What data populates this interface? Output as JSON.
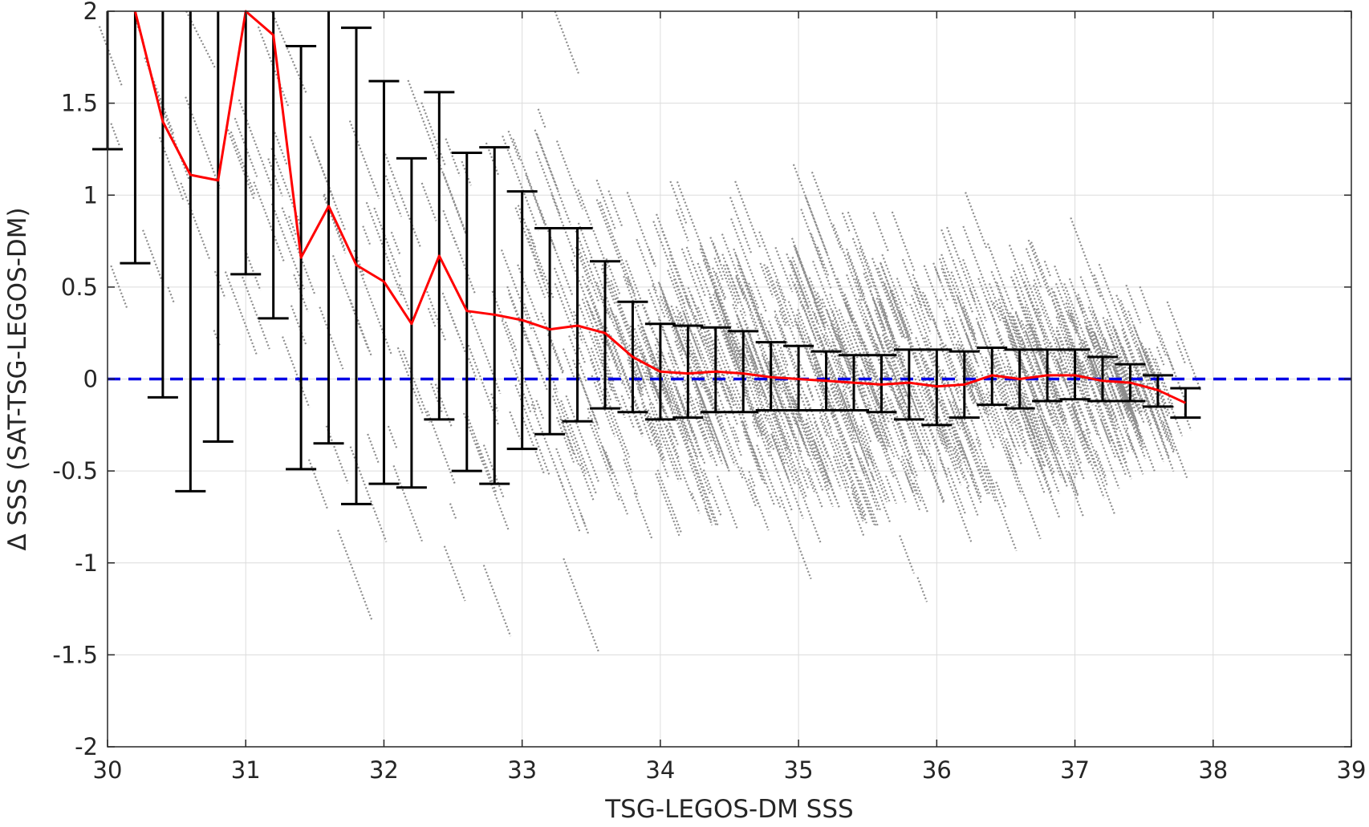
{
  "chart_data": {
    "type": "scatter",
    "title": "",
    "xlabel": "TSG-LEGOS-DM SSS",
    "ylabel": "Δ SSS (SAT-TSG-LEGOS-DM)",
    "xlim": [
      30,
      39
    ],
    "ylim": [
      -2,
      2
    ],
    "x_ticks": [
      30,
      31,
      32,
      33,
      34,
      35,
      36,
      37,
      38,
      39
    ],
    "y_ticks": [
      -2,
      -1.5,
      -1,
      -0.5,
      0,
      0.5,
      1,
      1.5,
      2
    ],
    "x_tick_labels": [
      "30",
      "31",
      "32",
      "33",
      "34",
      "35",
      "36",
      "37",
      "38",
      "39"
    ],
    "y_tick_labels": [
      "-2",
      "-1.5",
      "-1",
      "-0.5",
      "0",
      "0.5",
      "1",
      "1.5",
      "2"
    ],
    "grid": true,
    "colors": {
      "scatter": "#8c8c8c",
      "mean_line": "#ff0000",
      "error_bars": "#000000",
      "zero_line": "#0000e6",
      "grid": "#dcdcdc",
      "axes": "#262626"
    },
    "series": [
      {
        "type": "line",
        "role": "binned-mean",
        "x": [
          30.2,
          30.4,
          30.6,
          30.8,
          31.0,
          31.2,
          31.4,
          31.6,
          31.8,
          32.0,
          32.2,
          32.4,
          32.6,
          32.8,
          33.0,
          33.2,
          33.4,
          33.6,
          33.8,
          34.0,
          34.2,
          34.4,
          34.6,
          34.8,
          35.0,
          35.2,
          35.4,
          35.6,
          35.8,
          36.0,
          36.2,
          36.4,
          36.6,
          36.8,
          37.0,
          37.2,
          37.4,
          37.6,
          37.8
        ],
        "y": [
          2.05,
          1.4,
          1.11,
          1.08,
          2.0,
          1.87,
          0.66,
          0.94,
          0.62,
          0.53,
          0.3,
          0.67,
          0.37,
          0.35,
          0.32,
          0.27,
          0.29,
          0.25,
          0.12,
          0.04,
          0.03,
          0.04,
          0.03,
          0.01,
          0.0,
          -0.01,
          -0.02,
          -0.03,
          -0.02,
          -0.04,
          -0.03,
          0.02,
          0.0,
          0.02,
          0.02,
          -0.01,
          -0.02,
          -0.06,
          -0.13
        ]
      },
      {
        "type": "errorbar",
        "role": "binned-spread",
        "x": [
          30.0,
          30.2,
          30.4,
          30.6,
          30.8,
          31.0,
          31.2,
          31.4,
          31.6,
          31.8,
          32.0,
          32.2,
          32.4,
          32.6,
          32.8,
          33.0,
          33.2,
          33.4,
          33.6,
          33.8,
          34.0,
          34.2,
          34.4,
          34.6,
          34.8,
          35.0,
          35.2,
          35.4,
          35.6,
          35.8,
          36.0,
          36.2,
          36.4,
          36.6,
          36.8,
          37.0,
          37.2,
          37.4,
          37.6,
          37.8
        ],
        "lower": [
          1.25,
          0.63,
          -0.1,
          -0.61,
          -0.34,
          0.57,
          0.33,
          -0.49,
          -0.35,
          -0.68,
          -0.57,
          -0.59,
          -0.22,
          -0.5,
          -0.57,
          -0.38,
          -0.3,
          -0.23,
          -0.16,
          -0.18,
          -0.22,
          -0.21,
          -0.18,
          -0.18,
          -0.17,
          -0.17,
          -0.17,
          -0.17,
          -0.18,
          -0.22,
          -0.25,
          -0.21,
          -0.14,
          -0.16,
          -0.12,
          -0.11,
          -0.12,
          -0.12,
          -0.15,
          -0.21
        ],
        "upper": [
          2.05,
          2.05,
          2.05,
          2.05,
          2.05,
          2.05,
          2.05,
          1.81,
          2.05,
          1.91,
          1.62,
          1.2,
          1.56,
          1.23,
          1.26,
          1.02,
          0.82,
          0.82,
          0.64,
          0.42,
          0.3,
          0.29,
          0.28,
          0.26,
          0.2,
          0.18,
          0.15,
          0.13,
          0.13,
          0.16,
          0.16,
          0.15,
          0.17,
          0.16,
          0.16,
          0.16,
          0.12,
          0.08,
          0.02,
          -0.05
        ]
      },
      {
        "type": "reference-line",
        "role": "zero",
        "y": 0,
        "x": [
          30,
          39
        ]
      }
    ]
  }
}
